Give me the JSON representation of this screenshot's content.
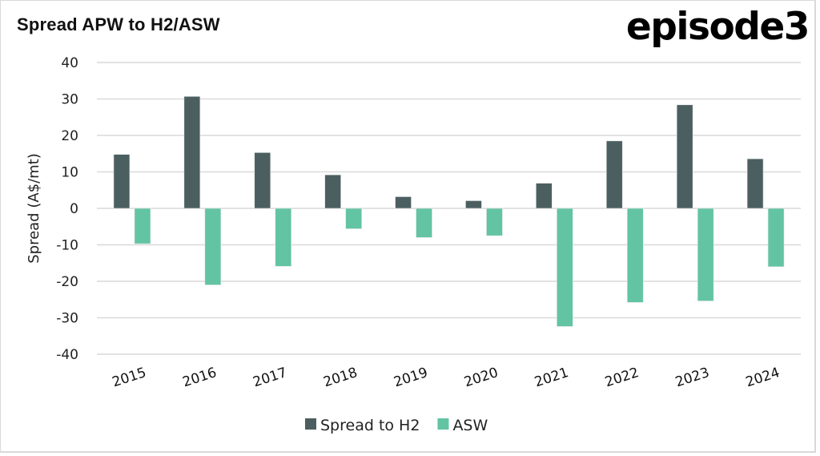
{
  "header": {
    "title": "Spread APW to H2/ASW",
    "logo": "episode3"
  },
  "chart_data": {
    "type": "bar",
    "title": "Spread APW to H2/ASW",
    "xlabel": "",
    "ylabel": "Spread (A$/mt)",
    "ylim": [
      -40,
      40
    ],
    "yticks": [
      40,
      30,
      20,
      10,
      0,
      -10,
      -20,
      -30,
      -40
    ],
    "ytick_labels": [
      "40",
      "30",
      "20",
      "10",
      "0",
      "-10",
      "-20",
      "-30",
      "-40"
    ],
    "grid": true,
    "legend_position": "bottom",
    "categories": [
      "2015",
      "2016",
      "2017",
      "2018",
      "2019",
      "2020",
      "2021",
      "2022",
      "2023",
      "2024"
    ],
    "series": [
      {
        "name": "Spread to H2",
        "color": "#4b5f60",
        "values": [
          14.8,
          30.7,
          15.3,
          9.2,
          3.2,
          2.1,
          6.9,
          18.5,
          28.4,
          13.6
        ]
      },
      {
        "name": "ASW",
        "color": "#62c4a2",
        "values": [
          -9.7,
          -21.0,
          -15.9,
          -5.6,
          -8.0,
          -7.5,
          -32.4,
          -25.8,
          -25.4,
          -16.0
        ]
      }
    ]
  }
}
